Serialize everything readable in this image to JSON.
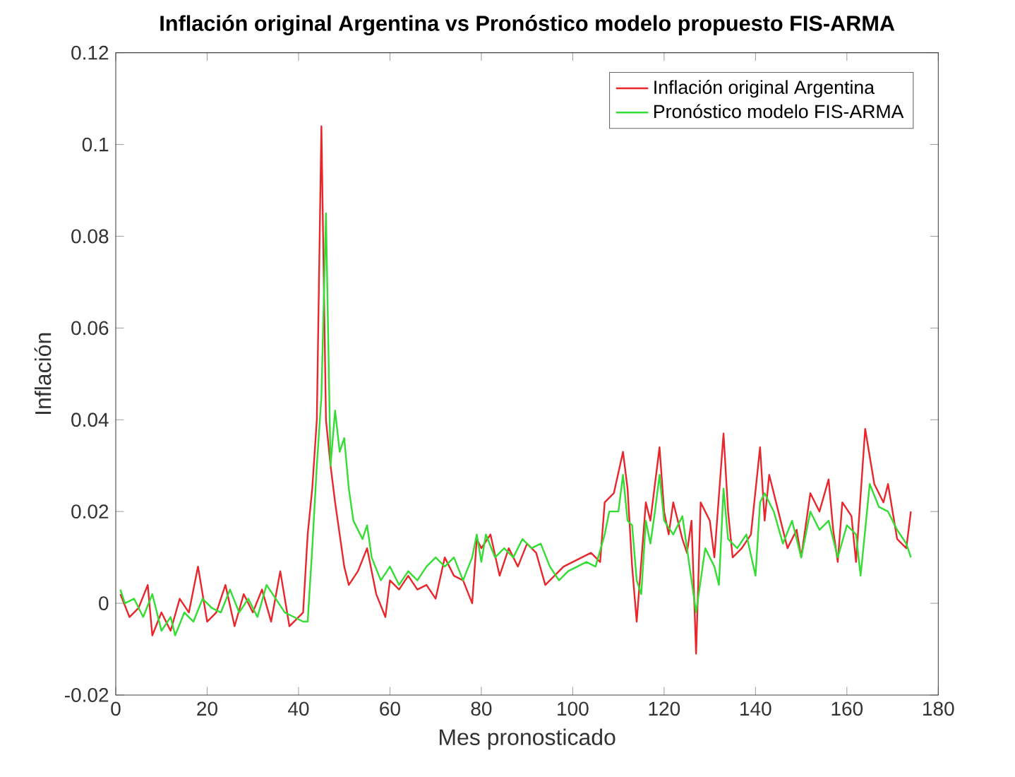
{
  "chart_data": {
    "type": "line",
    "title": "Inflación original Argentina vs Pronóstico modelo propuesto FIS-ARMA",
    "xlabel": "Mes pronosticado",
    "ylabel": "Inflación",
    "xlim": [
      0,
      180
    ],
    "ylim": [
      -0.02,
      0.12
    ],
    "xticks": [
      0,
      20,
      40,
      60,
      80,
      100,
      120,
      140,
      160,
      180
    ],
    "yticks": [
      -0.02,
      0,
      0.02,
      0.04,
      0.06,
      0.08,
      0.1,
      0.12
    ],
    "grid": false,
    "legend": "top right",
    "line_style": "solid",
    "marker": "none",
    "series": [
      {
        "name": "Inflación original Argentina",
        "color": "#e8262b",
        "x": [
          1,
          3,
          5,
          7,
          8,
          10,
          12,
          14,
          16,
          18,
          20,
          22,
          24,
          26,
          28,
          30,
          32,
          34,
          36,
          38,
          40,
          41,
          42,
          43,
          44,
          45,
          46,
          47,
          48,
          49,
          50,
          51,
          53,
          55,
          57,
          59,
          60,
          62,
          64,
          66,
          68,
          70,
          72,
          74,
          76,
          78,
          79,
          80,
          82,
          84,
          86,
          88,
          90,
          92,
          94,
          96,
          98,
          100,
          102,
          104,
          106,
          107,
          109,
          111,
          112,
          113,
          114,
          116,
          117,
          119,
          120,
          121,
          122,
          124,
          125,
          126,
          127,
          128,
          130,
          131,
          133,
          134,
          135,
          137,
          139,
          141,
          142,
          143,
          145,
          147,
          149,
          150,
          152,
          154,
          156,
          157,
          158,
          159,
          161,
          162,
          164,
          166,
          168,
          169,
          171,
          173,
          174
        ],
        "values": [
          0.002,
          -0.003,
          -0.001,
          0.004,
          -0.007,
          -0.002,
          -0.006,
          0.001,
          -0.002,
          0.008,
          -0.004,
          -0.002,
          0.004,
          -0.005,
          0.002,
          -0.002,
          0.003,
          -0.004,
          0.007,
          -0.005,
          -0.003,
          -0.002,
          0.015,
          0.025,
          0.04,
          0.104,
          0.04,
          0.03,
          0.022,
          0.015,
          0.008,
          0.004,
          0.007,
          0.012,
          0.002,
          -0.003,
          0.005,
          0.003,
          0.006,
          0.003,
          0.004,
          0.001,
          0.01,
          0.006,
          0.005,
          0.0,
          0.014,
          0.012,
          0.015,
          0.006,
          0.012,
          0.008,
          0.013,
          0.011,
          0.004,
          0.006,
          0.008,
          0.009,
          0.01,
          0.011,
          0.009,
          0.022,
          0.024,
          0.033,
          0.025,
          0.008,
          -0.004,
          0.022,
          0.018,
          0.034,
          0.02,
          0.015,
          0.022,
          0.014,
          0.011,
          0.018,
          -0.011,
          0.022,
          0.018,
          0.01,
          0.037,
          0.02,
          0.01,
          0.012,
          0.015,
          0.034,
          0.018,
          0.028,
          0.02,
          0.012,
          0.016,
          0.01,
          0.024,
          0.02,
          0.027,
          0.016,
          0.009,
          0.022,
          0.019,
          0.009,
          0.038,
          0.026,
          0.022,
          0.026,
          0.014,
          0.012,
          0.02
        ]
      },
      {
        "name": "Pronóstico modelo FIS-ARMA",
        "color": "#33dd33",
        "x": [
          1,
          2,
          4,
          6,
          8,
          10,
          12,
          13,
          15,
          17,
          19,
          21,
          23,
          25,
          27,
          29,
          31,
          33,
          35,
          37,
          39,
          41,
          42,
          43,
          44,
          45,
          46,
          47,
          48,
          49,
          50,
          51,
          52,
          53,
          54,
          55,
          56,
          58,
          60,
          62,
          64,
          66,
          68,
          70,
          72,
          74,
          76,
          78,
          79,
          80,
          81,
          83,
          85,
          87,
          89,
          91,
          93,
          95,
          97,
          99,
          101,
          103,
          105,
          107,
          108,
          110,
          111,
          112,
          113,
          114,
          115,
          116,
          117,
          118,
          119,
          120,
          122,
          124,
          126,
          127,
          129,
          131,
          132,
          133,
          134,
          136,
          138,
          140,
          141,
          142,
          144,
          146,
          148,
          150,
          152,
          154,
          156,
          158,
          160,
          162,
          163,
          165,
          167,
          169,
          171,
          173,
          174
        ],
        "values": [
          0.003,
          0.0,
          0.001,
          -0.003,
          0.002,
          -0.006,
          -0.003,
          -0.007,
          -0.002,
          -0.004,
          0.001,
          -0.001,
          -0.002,
          0.003,
          -0.002,
          0.001,
          -0.003,
          0.004,
          0.001,
          -0.002,
          -0.003,
          -0.004,
          -0.004,
          0.012,
          0.03,
          0.045,
          0.085,
          0.03,
          0.042,
          0.033,
          0.036,
          0.025,
          0.018,
          0.016,
          0.014,
          0.017,
          0.01,
          0.005,
          0.008,
          0.004,
          0.007,
          0.005,
          0.008,
          0.01,
          0.008,
          0.01,
          0.005,
          0.01,
          0.015,
          0.009,
          0.015,
          0.01,
          0.012,
          0.01,
          0.014,
          0.012,
          0.013,
          0.008,
          0.005,
          0.007,
          0.008,
          0.009,
          0.008,
          0.015,
          0.02,
          0.02,
          0.028,
          0.018,
          0.017,
          0.005,
          0.002,
          0.018,
          0.013,
          0.02,
          0.028,
          0.018,
          0.015,
          0.019,
          0.005,
          -0.002,
          0.012,
          0.008,
          0.004,
          0.025,
          0.014,
          0.012,
          0.015,
          0.006,
          0.022,
          0.024,
          0.02,
          0.013,
          0.018,
          0.01,
          0.02,
          0.016,
          0.018,
          0.01,
          0.017,
          0.015,
          0.006,
          0.026,
          0.021,
          0.02,
          0.016,
          0.013,
          0.01
        ]
      }
    ]
  }
}
